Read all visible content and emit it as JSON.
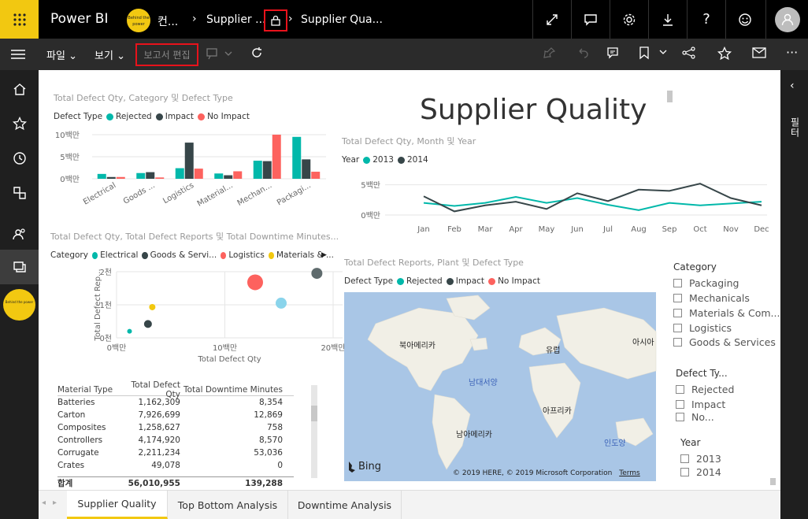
{
  "header": {
    "app_title": "Power BI",
    "workspace_name": "컨...",
    "breadcrumb_1": "Supplier ...",
    "breadcrumb_2": "Supplier Qua...",
    "workspace_logo_text": "Behind the power"
  },
  "toolbar": {
    "file_label": "파일",
    "view_label": "보기",
    "edit_report_label": "보고서 편집"
  },
  "report": {
    "big_title": "Supplier Quality",
    "chart1": {
      "title": "Total Defect Qty, Category 및 Defect Type",
      "legend_title": "Defect Type",
      "legend": [
        "Rejected",
        "Impact",
        "No Impact"
      ],
      "y_ticks": [
        "10백만",
        "5백만",
        "0백만"
      ]
    },
    "chart2": {
      "title": "Total Defect Qty, Month 및 Year",
      "legend_title": "Year",
      "legend": [
        "2013",
        "2014"
      ],
      "y_ticks": [
        "5백만",
        "0백만"
      ]
    },
    "chart3": {
      "title": "Total Defect Qty, Total Defect Reports 및 Total Downtime Minutes...",
      "legend_title": "Category",
      "legend": [
        "Electrical",
        "Goods & Servi...",
        "Logistics",
        "Materials & ..."
      ],
      "y_ticks": [
        "2천",
        "1천",
        "0천"
      ],
      "x_ticks": [
        "0백만",
        "10백만",
        "20백만"
      ],
      "xlabel": "Total Defect Qty",
      "ylabel": "Total Defect Rep..."
    },
    "chart4": {
      "title": "Total Defect Reports, Plant 및 Defect Type",
      "legend_title": "Defect Type",
      "legend": [
        "Rejected",
        "Impact",
        "No Impact"
      ],
      "continents": [
        "북아메리카",
        "유럽",
        "아시아",
        "아프리카",
        "남아메리카"
      ],
      "oceans": [
        "남대서양",
        "인도양"
      ],
      "bing": "Bing",
      "copyright": "© 2019 HERE, © 2019 Microsoft Corporation",
      "terms": "Terms"
    },
    "table": {
      "headers": [
        "Material Type",
        "Total Defect Qty",
        "Total Downtime Minutes"
      ],
      "rows": [
        [
          "Batteries",
          "1,162,309",
          "8,354"
        ],
        [
          "Carton",
          "7,926,699",
          "12,869"
        ],
        [
          "Composites",
          "1,258,627",
          "758"
        ],
        [
          "Controllers",
          "4,174,920",
          "8,570"
        ],
        [
          "Corrugate",
          "2,211,234",
          "53,036"
        ],
        [
          "Crates",
          "49,078",
          "0"
        ]
      ],
      "total": [
        "합계",
        "56,010,955",
        "139,288"
      ]
    },
    "slicer_category": {
      "title": "Category",
      "items": [
        "Packaging",
        "Mechanicals",
        "Materials & Com...",
        "Logistics",
        "Goods & Services"
      ]
    },
    "slicer_defect": {
      "title": "Defect Ty...",
      "items": [
        "Rejected",
        "Impact",
        "No..."
      ]
    },
    "slicer_year": {
      "title": "Year",
      "items": [
        "2013",
        "2014"
      ]
    }
  },
  "tabs": [
    "Supplier Quality",
    "Top Bottom Analysis",
    "Downtime Analysis"
  ],
  "right_pane_label": "필터",
  "colors": {
    "teal": "#01b8aa",
    "dark": "#374649",
    "red": "#fd625e",
    "yellow": "#f2c80f",
    "lightblue": "#8ad4eb",
    "brand": "#f2c811"
  },
  "chart_data": [
    {
      "type": "bar",
      "title": "Total Defect Qty, Category 및 Defect Type",
      "categories": [
        "Electrical",
        "Goods ...",
        "Logistics",
        "Material...",
        "Mechan...",
        "Packagi..."
      ],
      "series": [
        {
          "name": "Rejected",
          "color": "#01b8aa",
          "values": [
            1.1,
            1.3,
            2.4,
            1.2,
            4.1,
            9.5
          ]
        },
        {
          "name": "Impact",
          "color": "#374649",
          "values": [
            0.4,
            1.5,
            8.2,
            0.8,
            4.0,
            4.4
          ]
        },
        {
          "name": "No Impact",
          "color": "#fd625e",
          "values": [
            0.4,
            0.3,
            2.3,
            1.7,
            10.0,
            1.6
          ]
        }
      ],
      "ylim": [
        0,
        10
      ],
      "yticks": [
        "10백만",
        "5백만",
        "0백만"
      ]
    },
    {
      "type": "line",
      "title": "Total Defect Qty, Month 및 Year",
      "categories": [
        "Jan",
        "Feb",
        "Mar",
        "Apr",
        "May",
        "Jun",
        "Jul",
        "Aug",
        "Sep",
        "Oct",
        "Nov",
        "Dec"
      ],
      "series": [
        {
          "name": "2013",
          "color": "#01b8aa",
          "values": [
            2.0,
            1.5,
            2.0,
            3.0,
            2.0,
            2.8,
            1.7,
            0.8,
            2.0,
            1.6,
            1.9,
            2.2
          ]
        },
        {
          "name": "2014",
          "color": "#374649",
          "values": [
            3.1,
            0.6,
            1.6,
            2.2,
            1.0,
            3.6,
            2.3,
            4.2,
            4.0,
            5.2,
            2.8,
            1.6
          ]
        }
      ],
      "ylim": [
        0,
        6
      ],
      "yticks": [
        "5백만",
        "0백만"
      ]
    },
    {
      "type": "scatter",
      "title": "Total Defect Qty, Total Defect Reports 및 Total Downtime Minutes...",
      "xlabel": "Total Defect Qty",
      "ylabel": "Total Defect Rep...",
      "xlim": [
        0,
        20
      ],
      "ylim": [
        0,
        2000
      ],
      "points": [
        {
          "x": 1.2,
          "y": 200,
          "size": 3,
          "color": "#01b8aa"
        },
        {
          "x": 2.9,
          "y": 420,
          "size": 5,
          "color": "#374649"
        },
        {
          "x": 3.3,
          "y": 930,
          "size": 4,
          "color": "#f2c80f"
        },
        {
          "x": 12.8,
          "y": 1680,
          "size": 10,
          "color": "#fd625e"
        },
        {
          "x": 15.2,
          "y": 1050,
          "size": 7,
          "color": "#8ad4eb"
        },
        {
          "x": 18.5,
          "y": 1950,
          "size": 7,
          "color": "#5f6b6d"
        }
      ]
    }
  ]
}
